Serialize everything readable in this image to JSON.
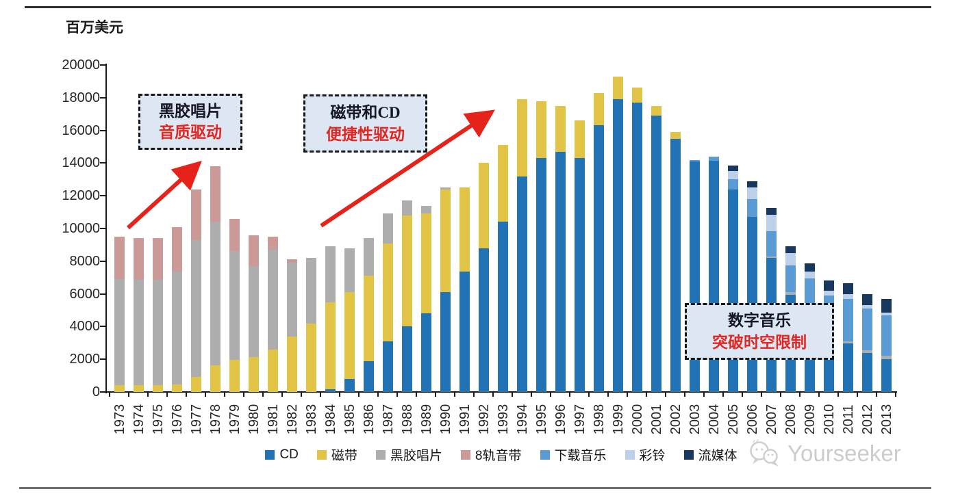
{
  "chart": {
    "unit_label": "百万美元"
  },
  "annotations": {
    "box1": {
      "line1": "黑胶唱片",
      "line2": "音质驱动"
    },
    "box2": {
      "line1": "磁带和CD",
      "line2": "便捷性驱动"
    },
    "box3": {
      "line1": "数字音乐",
      "line2": "突破时空限制"
    }
  },
  "watermark": {
    "icon": "wechat-icon",
    "text": "Yourseeker"
  },
  "colors": {
    "cd": "#2173b5",
    "cassette": "#e1c345",
    "vinyl": "#adadad",
    "eight_track": "#cb9a97",
    "download": "#5b9bd5",
    "ringtone": "#bdd0e9",
    "streaming": "#17375e",
    "arrow_red": "#e5231b",
    "annotation_fill": "#dce7f3"
  },
  "chart_data": {
    "type": "bar",
    "stacked": true,
    "title": "",
    "ylabel": "百万美元",
    "xlabel": "",
    "ylim": [
      0,
      20000
    ],
    "y_tick_step": 2000,
    "y_ticks": [
      0,
      2000,
      4000,
      6000,
      8000,
      10000,
      12000,
      14000,
      16000,
      18000,
      20000
    ],
    "grid": false,
    "legend_position": "bottom",
    "categories": [
      1973,
      1974,
      1975,
      1976,
      1977,
      1978,
      1979,
      1980,
      1981,
      1982,
      1983,
      1984,
      1985,
      1986,
      1987,
      1988,
      1989,
      1990,
      1991,
      1992,
      1993,
      1994,
      1995,
      1996,
      1997,
      1998,
      1999,
      2000,
      2001,
      2002,
      2003,
      2004,
      2005,
      2006,
      2007,
      2008,
      2009,
      2010,
      2011,
      2012,
      2013
    ],
    "series": [
      {
        "name": "CD",
        "color": "#2173b5",
        "values": [
          0,
          0,
          0,
          0,
          0,
          0,
          0,
          0,
          0,
          0,
          0,
          150,
          800,
          1900,
          3100,
          4000,
          4800,
          6100,
          7350,
          8800,
          10400,
          13200,
          14300,
          14700,
          14300,
          16300,
          17900,
          17700,
          16900,
          15500,
          14100,
          14150,
          12400,
          10700,
          8200,
          5950,
          4950,
          3500,
          2950,
          2400,
          2000
        ]
      },
      {
        "name": "磁带",
        "color": "#e1c345",
        "values": [
          400,
          400,
          400,
          450,
          900,
          1650,
          1950,
          2150,
          2600,
          3400,
          4200,
          5350,
          5300,
          5200,
          6000,
          6800,
          6100,
          6300,
          5150,
          5200,
          4700,
          4700,
          3500,
          2800,
          2300,
          2000,
          1400,
          900,
          600,
          400,
          0,
          0,
          0,
          0,
          0,
          0,
          0,
          0,
          0,
          0,
          0
        ]
      },
      {
        "name": "黑胶唱片",
        "color": "#adadad",
        "values": [
          6500,
          6450,
          6450,
          6900,
          8400,
          8750,
          6650,
          5550,
          6100,
          4500,
          4000,
          3400,
          2700,
          2300,
          1800,
          900,
          500,
          100,
          0,
          0,
          0,
          0,
          0,
          0,
          0,
          0,
          0,
          0,
          0,
          0,
          0,
          0,
          0,
          0,
          100,
          150,
          100,
          100,
          150,
          150,
          200
        ]
      },
      {
        "name": "8轨音带",
        "color": "#cb9a97",
        "values": [
          2600,
          2550,
          2550,
          2750,
          3100,
          3400,
          2000,
          1900,
          800,
          200,
          0,
          0,
          0,
          0,
          0,
          0,
          0,
          0,
          0,
          0,
          0,
          0,
          0,
          0,
          0,
          0,
          0,
          0,
          0,
          0,
          0,
          0,
          0,
          0,
          0,
          0,
          0,
          0,
          0,
          0,
          0
        ]
      },
      {
        "name": "下载音乐",
        "color": "#5b9bd5",
        "values": [
          0,
          0,
          0,
          0,
          0,
          0,
          0,
          0,
          0,
          0,
          0,
          0,
          0,
          0,
          0,
          0,
          0,
          0,
          0,
          0,
          0,
          0,
          0,
          0,
          0,
          0,
          0,
          0,
          0,
          0,
          100,
          250,
          600,
          1100,
          1550,
          1650,
          1900,
          2300,
          2600,
          2550,
          2500
        ]
      },
      {
        "name": "彩铃",
        "color": "#bdd0e9",
        "values": [
          0,
          0,
          0,
          0,
          0,
          0,
          0,
          0,
          0,
          0,
          0,
          0,
          0,
          0,
          0,
          0,
          0,
          0,
          0,
          0,
          0,
          0,
          0,
          0,
          0,
          0,
          0,
          0,
          0,
          0,
          0,
          0,
          500,
          700,
          1000,
          750,
          400,
          300,
          300,
          200,
          150
        ]
      },
      {
        "name": "流媒体",
        "color": "#17375e",
        "values": [
          0,
          0,
          0,
          0,
          0,
          0,
          0,
          0,
          0,
          0,
          0,
          0,
          0,
          0,
          0,
          0,
          0,
          0,
          0,
          0,
          0,
          0,
          0,
          0,
          0,
          0,
          0,
          0,
          0,
          0,
          0,
          0,
          350,
          400,
          400,
          400,
          500,
          600,
          650,
          700,
          850
        ]
      }
    ]
  }
}
